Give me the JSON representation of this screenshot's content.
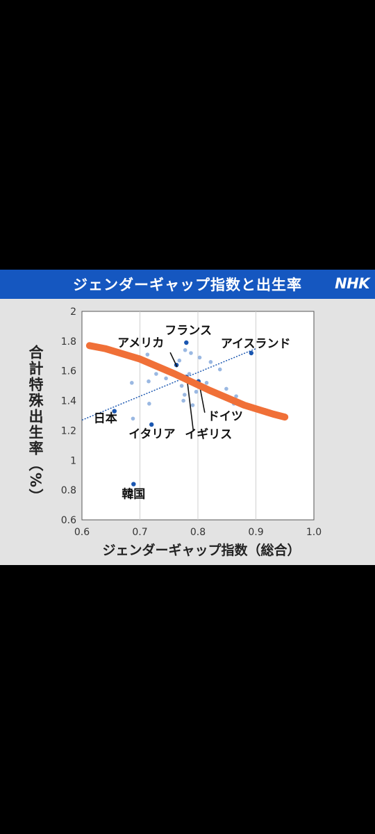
{
  "banner": {
    "title": "ジェンダーギャップ指数と出生率",
    "logo": "NHK",
    "color": "#1557c0"
  },
  "colors": {
    "accent_stroke": "#f07038",
    "point_dark": "#1a56b0",
    "point_light": "#9ab8e2",
    "trend": "#1a56b0"
  },
  "chart_data": {
    "type": "scatter",
    "title": "ジェンダーギャップ指数と出生率",
    "xlabel": "ジェンダーギャップ指数（総合）",
    "ylabel": "合計特殊出生率（%）",
    "xlim": [
      0.6,
      1.0
    ],
    "ylim": [
      0.6,
      2.0
    ],
    "xticks": [
      "0.6",
      "0.7",
      "0.8",
      "0.9",
      "1.0"
    ],
    "yticks": [
      "0.6",
      "0.8",
      "1",
      "1.2",
      "1.4",
      "1.6",
      "1.8",
      "2"
    ],
    "grid": "vertical",
    "labeled_points": [
      {
        "name": "日本",
        "x": 0.656,
        "y": 1.33
      },
      {
        "name": "韓国",
        "x": 0.689,
        "y": 0.84
      },
      {
        "name": "イタリア",
        "x": 0.72,
        "y": 1.24
      },
      {
        "name": "アメリカ",
        "x": 0.763,
        "y": 1.64
      },
      {
        "name": "フランス",
        "x": 0.78,
        "y": 1.79
      },
      {
        "name": "ドイツ",
        "x": 0.801,
        "y": 1.53
      },
      {
        "name": "イギリス",
        "x": 0.78,
        "y": 1.56
      },
      {
        "name": "アイスランド",
        "x": 0.892,
        "y": 1.72
      }
    ],
    "other_points": [
      [
        0.686,
        1.52
      ],
      [
        0.688,
        1.28
      ],
      [
        0.713,
        1.71
      ],
      [
        0.715,
        1.53
      ],
      [
        0.716,
        1.38
      ],
      [
        0.728,
        1.58
      ],
      [
        0.745,
        1.55
      ],
      [
        0.768,
        1.67
      ],
      [
        0.772,
        1.5
      ],
      [
        0.775,
        1.4
      ],
      [
        0.777,
        1.44
      ],
      [
        0.778,
        1.74
      ],
      [
        0.785,
        1.58
      ],
      [
        0.788,
        1.72
      ],
      [
        0.791,
        1.37
      ],
      [
        0.797,
        1.46
      ],
      [
        0.803,
        1.69
      ],
      [
        0.815,
        1.52
      ],
      [
        0.822,
        1.66
      ],
      [
        0.838,
        1.61
      ],
      [
        0.849,
        1.48
      ],
      [
        0.862,
        1.38
      ],
      [
        0.866,
        1.43
      ]
    ],
    "trendline": {
      "x": [
        0.6,
        0.9
      ],
      "y": [
        1.27,
        1.75
      ]
    },
    "annotation_stroke": {
      "x": [
        0.613,
        0.64,
        0.7,
        0.76,
        0.82,
        0.88,
        0.93,
        0.95
      ],
      "y": [
        1.77,
        1.75,
        1.68,
        1.58,
        1.47,
        1.37,
        1.31,
        1.29
      ]
    }
  }
}
